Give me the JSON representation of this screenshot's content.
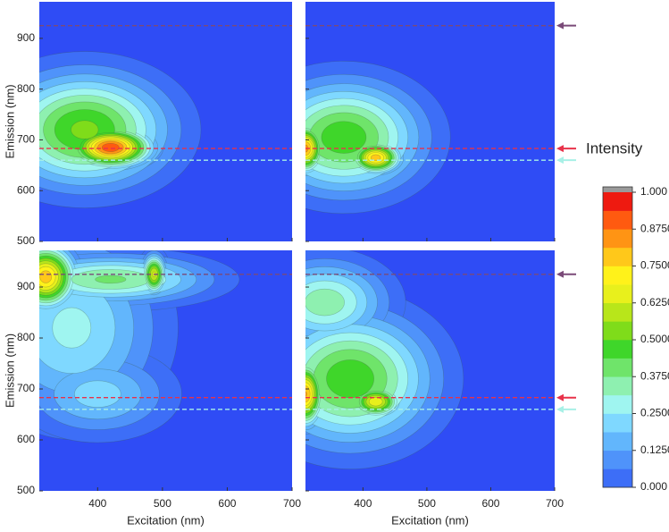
{
  "chart_data": {
    "type": "contour",
    "x_label": "Excitation (nm)",
    "y_label": "Emission (nm)",
    "xlim": [
      310,
      700
    ],
    "ylim": [
      500,
      972
    ],
    "xticks": [
      400,
      500,
      600,
      700
    ],
    "yticks": [
      500,
      600,
      700,
      800,
      900
    ],
    "hlines": [
      {
        "value": 925,
        "color": "#7a4a78"
      },
      {
        "value": 683,
        "color": "#e8324a"
      },
      {
        "value": 660,
        "color": "#a8f0e6"
      }
    ],
    "colorbar": {
      "title": "Intensity",
      "levels": [
        0,
        0.0625,
        0.125,
        0.1875,
        0.25,
        0.3125,
        0.375,
        0.4375,
        0.5,
        0.5625,
        0.625,
        0.6875,
        0.75,
        0.8125,
        0.875,
        0.9375,
        1.0
      ],
      "colors": [
        "#2f4cf5",
        "#3d6ef7",
        "#4f93fa",
        "#62b6fc",
        "#7fd8ff",
        "#9ff5f0",
        "#8ef0b0",
        "#6fe46a",
        "#3fd62a",
        "#7fdc1a",
        "#b8e61a",
        "#e8f01c",
        "#fff21a",
        "#ffc81a",
        "#ff9414",
        "#ff5a10",
        "#ee1a10",
        "#9a9a9a"
      ],
      "ticks": [
        {
          "value": 0,
          "label": "0.000"
        },
        {
          "value": 0.125,
          "label": "0.1250"
        },
        {
          "value": 0.25,
          "label": "0.2500"
        },
        {
          "value": 0.375,
          "label": "0.3750"
        },
        {
          "value": 0.5,
          "label": "0.5000"
        },
        {
          "value": 0.625,
          "label": "0.6250"
        },
        {
          "value": 0.75,
          "label": "0.7500"
        },
        {
          "value": 0.875,
          "label": "0.8750"
        },
        {
          "value": 1.0,
          "label": "1.000"
        }
      ]
    },
    "panels": [
      {
        "components": [
          {
            "x": 380,
            "y": 720,
            "sx": 85,
            "sy": 73,
            "amp": 0.58
          },
          {
            "x": 420,
            "y": 685,
            "sx": 40,
            "sy": 25,
            "amp": 0.99
          }
        ]
      },
      {
        "components": [
          {
            "x": 370,
            "y": 705,
            "sx": 80,
            "sy": 72,
            "amp": 0.55
          },
          {
            "x": 310,
            "y": 683,
            "sx": 18,
            "sy": 30,
            "amp": 0.9
          },
          {
            "x": 420,
            "y": 665,
            "sx": 25,
            "sy": 20,
            "amp": 0.85
          }
        ]
      },
      {
        "components": [
          {
            "x": 360,
            "y": 820,
            "sx": 90,
            "sy": 120,
            "amp": 0.33
          },
          {
            "x": 420,
            "y": 915,
            "sx": 100,
            "sy": 32,
            "amp": 0.45
          },
          {
            "x": 320,
            "y": 920,
            "sx": 30,
            "sy": 40,
            "amp": 0.85
          },
          {
            "x": 487,
            "y": 925,
            "sx": 12,
            "sy": 25,
            "amp": 0.7
          },
          {
            "x": 400,
            "y": 690,
            "sx": 75,
            "sy": 55,
            "amp": 0.28
          }
        ]
      },
      {
        "components": [
          {
            "x": 380,
            "y": 720,
            "sx": 85,
            "sy": 85,
            "amp": 0.55
          },
          {
            "x": 340,
            "y": 870,
            "sx": 65,
            "sy": 55,
            "amp": 0.42
          },
          {
            "x": 310,
            "y": 690,
            "sx": 18,
            "sy": 40,
            "amp": 0.88
          },
          {
            "x": 420,
            "y": 675,
            "sx": 25,
            "sy": 20,
            "amp": 0.75
          }
        ]
      }
    ]
  }
}
